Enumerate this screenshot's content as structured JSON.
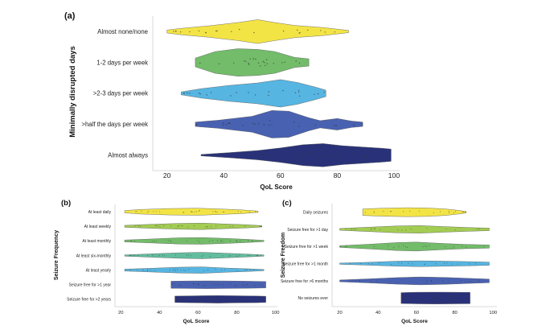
{
  "chart_data": [
    {
      "type": "violin",
      "panel_label": "(a)",
      "xlabel": "QoL Score",
      "ylabel": "Minimally disrupted days",
      "xlim": [
        15,
        102
      ],
      "xticks": [
        20,
        40,
        60,
        80,
        100
      ],
      "categories": [
        {
          "label": "Almost none/none",
          "color": "#f2e33c",
          "min": 20,
          "max": 84,
          "widths": [
            [
              20,
              0.1
            ],
            [
              25,
              0.22
            ],
            [
              35,
              0.4
            ],
            [
              45,
              0.62
            ],
            [
              52,
              0.82
            ],
            [
              58,
              0.62
            ],
            [
              65,
              0.42
            ],
            [
              75,
              0.28
            ],
            [
              84,
              0.08
            ]
          ]
        },
        {
          "label": "1-2 days per week",
          "color": "#6cb862",
          "min": 30,
          "max": 70,
          "widths": [
            [
              30,
              0.3
            ],
            [
              37,
              0.75
            ],
            [
              45,
              0.95
            ],
            [
              52,
              0.9
            ],
            [
              58,
              0.75
            ],
            [
              65,
              0.35
            ],
            [
              70,
              0.25
            ]
          ]
        },
        {
          "label": ">2-3 days per week",
          "color": "#4eb1df",
          "min": 25,
          "max": 76,
          "widths": [
            [
              25,
              0.1
            ],
            [
              32,
              0.32
            ],
            [
              42,
              0.55
            ],
            [
              52,
              0.72
            ],
            [
              60,
              0.95
            ],
            [
              66,
              0.75
            ],
            [
              72,
              0.45
            ],
            [
              76,
              0.22
            ]
          ]
        },
        {
          "label": ">half the days per week",
          "color": "#3f58ad",
          "min": 30,
          "max": 89,
          "widths": [
            [
              30,
              0.15
            ],
            [
              38,
              0.28
            ],
            [
              50,
              0.55
            ],
            [
              57,
              0.95
            ],
            [
              63,
              0.9
            ],
            [
              70,
              0.45
            ],
            [
              74,
              0.25
            ],
            [
              80,
              0.4
            ],
            [
              85,
              0.22
            ],
            [
              89,
              0.15
            ]
          ]
        },
        {
          "label": "Almost always",
          "color": "#1e2771",
          "min": 32,
          "max": 99,
          "widths": [
            [
              32,
              0.05
            ],
            [
              42,
              0.18
            ],
            [
              52,
              0.32
            ],
            [
              60,
              0.5
            ],
            [
              68,
              0.72
            ],
            [
              75,
              0.8
            ],
            [
              82,
              0.65
            ],
            [
              90,
              0.55
            ],
            [
              96,
              0.48
            ],
            [
              99,
              0.42
            ]
          ]
        }
      ]
    },
    {
      "type": "violin",
      "panel_label": "(b)",
      "xlabel": "QoL Score",
      "ylabel": "Seizure Frequency",
      "xlim": [
        17,
        101
      ],
      "xticks": [
        20,
        40,
        60,
        80,
        100
      ],
      "categories": [
        {
          "label": "At least daily",
          "color": "#f2e33c",
          "min": 22,
          "max": 91,
          "widths": [
            [
              22,
              0.18
            ],
            [
              30,
              0.35
            ],
            [
              45,
              0.5
            ],
            [
              60,
              0.55
            ],
            [
              72,
              0.42
            ],
            [
              82,
              0.3
            ],
            [
              91,
              0.1
            ]
          ]
        },
        {
          "label": "At least weekly",
          "color": "#9ec94a",
          "min": 22,
          "max": 93,
          "widths": [
            [
              22,
              0.15
            ],
            [
              35,
              0.3
            ],
            [
              50,
              0.45
            ],
            [
              62,
              0.5
            ],
            [
              75,
              0.35
            ],
            [
              85,
              0.25
            ],
            [
              93,
              0.1
            ]
          ]
        },
        {
          "label": "At least monthly",
          "color": "#6cb862",
          "min": 22,
          "max": 94,
          "widths": [
            [
              22,
              0.15
            ],
            [
              35,
              0.3
            ],
            [
              50,
              0.48
            ],
            [
              62,
              0.52
            ],
            [
              75,
              0.38
            ],
            [
              85,
              0.25
            ],
            [
              94,
              0.1
            ]
          ]
        },
        {
          "label": "At least six-monthly",
          "color": "#5ab99a",
          "min": 22,
          "max": 94,
          "widths": [
            [
              22,
              0.1
            ],
            [
              35,
              0.25
            ],
            [
              50,
              0.42
            ],
            [
              62,
              0.5
            ],
            [
              75,
              0.35
            ],
            [
              85,
              0.22
            ],
            [
              94,
              0.1
            ]
          ]
        },
        {
          "label": "At least yearly",
          "color": "#4eb1df",
          "min": 22,
          "max": 94,
          "widths": [
            [
              22,
              0.15
            ],
            [
              35,
              0.28
            ],
            [
              50,
              0.45
            ],
            [
              62,
              0.5
            ],
            [
              75,
              0.32
            ],
            [
              85,
              0.22
            ],
            [
              94,
              0.1
            ]
          ]
        },
        {
          "label": "Seizure free for >1 year",
          "color": "#3f58ad",
          "min": 46,
          "max": 95,
          "widths": [
            [
              46,
              0.55
            ],
            [
              55,
              0.58
            ],
            [
              65,
              0.6
            ],
            [
              75,
              0.58
            ],
            [
              85,
              0.55
            ],
            [
              95,
              0.5
            ]
          ]
        },
        {
          "label": "Seizure free for >2 years",
          "color": "#1e2771",
          "min": 48,
          "max": 95,
          "widths": [
            [
              48,
              0.5
            ],
            [
              60,
              0.55
            ],
            [
              70,
              0.58
            ],
            [
              80,
              0.55
            ],
            [
              90,
              0.52
            ],
            [
              95,
              0.48
            ]
          ]
        }
      ]
    },
    {
      "type": "violin",
      "panel_label": "(c)",
      "xlabel": "QoL Score",
      "ylabel": "Seizure Freedom",
      "xlim": [
        16,
        102
      ],
      "xticks": [
        20,
        40,
        60,
        80,
        100
      ],
      "categories": [
        {
          "label": "Daily seizures",
          "color": "#f2e33c",
          "min": 32,
          "max": 86,
          "widths": [
            [
              32,
              0.45
            ],
            [
              42,
              0.55
            ],
            [
              55,
              0.62
            ],
            [
              65,
              0.58
            ],
            [
              75,
              0.45
            ],
            [
              82,
              0.25
            ],
            [
              86,
              0.1
            ]
          ]
        },
        {
          "label": "Seizure free for >1 day",
          "color": "#9ec94a",
          "min": 20,
          "max": 98,
          "widths": [
            [
              20,
              0.12
            ],
            [
              35,
              0.3
            ],
            [
              50,
              0.48
            ],
            [
              62,
              0.52
            ],
            [
              75,
              0.38
            ],
            [
              88,
              0.25
            ],
            [
              98,
              0.18
            ]
          ]
        },
        {
          "label": "Seizure free for >1 week",
          "color": "#6cb862",
          "min": 20,
          "max": 98,
          "widths": [
            [
              20,
              0.12
            ],
            [
              35,
              0.32
            ],
            [
              50,
              0.55
            ],
            [
              60,
              0.62
            ],
            [
              72,
              0.45
            ],
            [
              85,
              0.3
            ],
            [
              98,
              0.22
            ]
          ]
        },
        {
          "label": "Seizure free for >1 month",
          "color": "#4eb1df",
          "min": 20,
          "max": 98,
          "widths": [
            [
              20,
              0.08
            ],
            [
              35,
              0.2
            ],
            [
              50,
              0.35
            ],
            [
              62,
              0.4
            ],
            [
              75,
              0.35
            ],
            [
              88,
              0.28
            ],
            [
              98,
              0.22
            ]
          ]
        },
        {
          "label": "Seizure free for >6 months",
          "color": "#3f58ad",
          "min": 20,
          "max": 98,
          "widths": [
            [
              20,
              0.12
            ],
            [
              35,
              0.28
            ],
            [
              50,
              0.45
            ],
            [
              62,
              0.55
            ],
            [
              75,
              0.48
            ],
            [
              88,
              0.35
            ],
            [
              98,
              0.25
            ]
          ]
        },
        {
          "label": "No seizures ever",
          "color": "#1e2771",
          "min": 52,
          "max": 88,
          "widths": [
            [
              52,
              0.75
            ],
            [
              60,
              0.8
            ],
            [
              70,
              0.82
            ],
            [
              80,
              0.8
            ],
            [
              88,
              0.78
            ]
          ]
        }
      ]
    }
  ]
}
